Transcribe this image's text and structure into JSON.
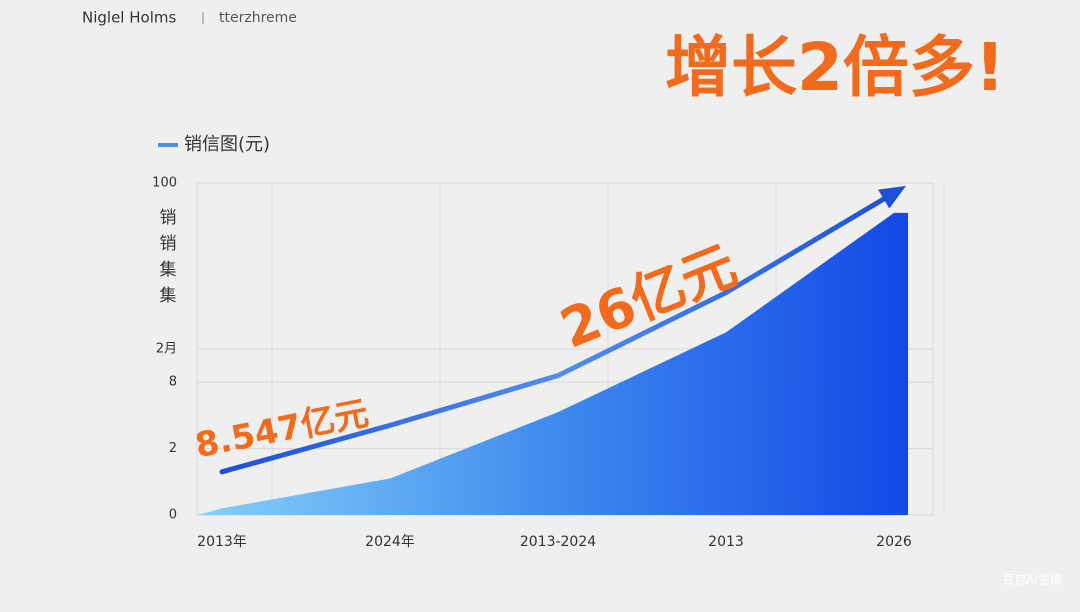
{
  "header": {
    "author": "Niglel Holms",
    "source": "tterzhreme"
  },
  "headline": "增长2倍多!",
  "watermark": "豆包AI生成",
  "chart_data": {
    "type": "area",
    "legend": "销信图(元)",
    "ylabel_chars": [
      "销",
      "销",
      "集",
      "集"
    ],
    "categories": [
      "2013年",
      "2024年",
      "2013-2024",
      "2013",
      "2026"
    ],
    "ylim": [
      0,
      100
    ],
    "yticks": [
      0,
      {
        "value": 20,
        "label": "2"
      },
      {
        "value": 40,
        "label": "8"
      },
      {
        "value": 50,
        "label": "2月"
      },
      100
    ],
    "grid": true,
    "series": [
      {
        "name": "销信图(元)",
        "color": "#2e5fe0",
        "values": [
          13,
          27,
          42,
          67,
          97
        ]
      },
      {
        "color": "#1a4fe8",
        "values": [
          2,
          11,
          31,
          55,
          91
        ]
      }
    ],
    "annotations": [
      "8.547亿元",
      "26亿元"
    ]
  }
}
